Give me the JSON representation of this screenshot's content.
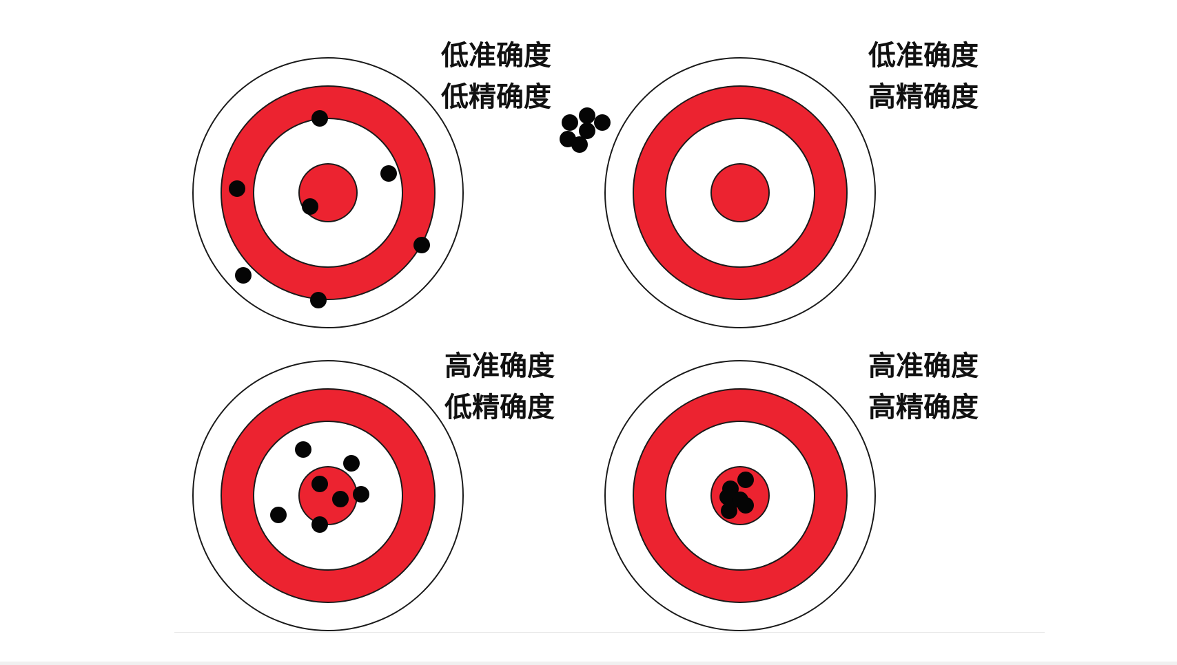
{
  "colors": {
    "ring_red": "#ec2330",
    "ring_white": "#ffffff",
    "outline": "#1a1a1a",
    "shot": "#050505",
    "text": "#111111"
  },
  "targets": [
    {
      "id": "low-accuracy-low-precision",
      "accuracy_label": "低准确度",
      "precision_label": "低精确度",
      "shot_count": 7
    },
    {
      "id": "low-accuracy-high-precision",
      "accuracy_label": "低准确度",
      "precision_label": "高精确度",
      "shot_count": 6
    },
    {
      "id": "high-accuracy-low-precision",
      "accuracy_label": "高准确度",
      "precision_label": "低精确度",
      "shot_count": 7
    },
    {
      "id": "high-accuracy-high-precision",
      "accuracy_label": "高准确度",
      "precision_label": "高精确度",
      "shot_count": 6
    }
  ]
}
